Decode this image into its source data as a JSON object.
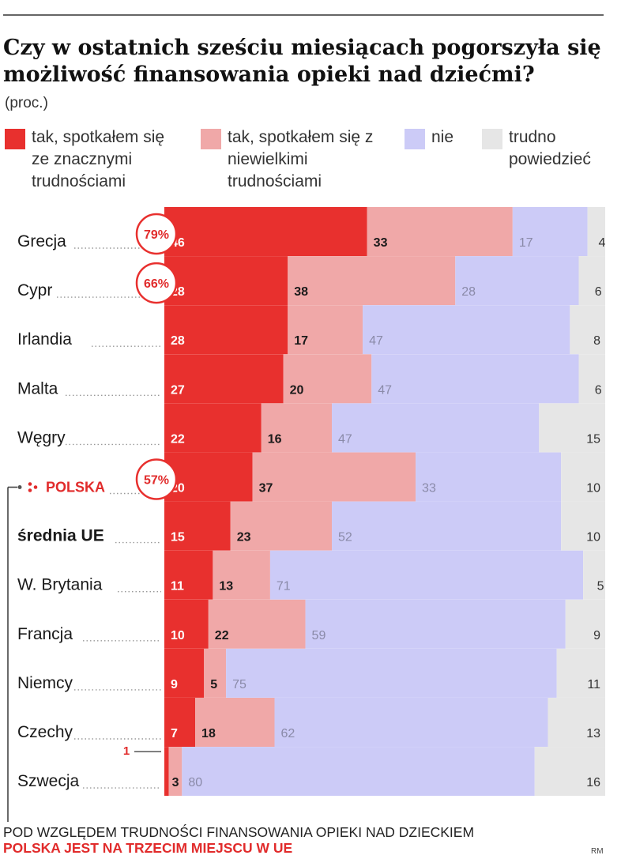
{
  "title": "Czy w ostatnich sześciu miesiącach pogorszyła się możliwość finansowania opieki nad dziećmi?",
  "unit": "(proc.)",
  "legend": [
    {
      "label": "tak, spotkałem się ze znacznymi trudnościami",
      "color": "#e8302e"
    },
    {
      "label": "tak, spotkałem się z niewielkimi trudnościami",
      "color": "#f0a8a8"
    },
    {
      "label": "nie",
      "color": "#cccbf7"
    },
    {
      "label": "trudno powiedzieć",
      "color": "#e6e6e6"
    }
  ],
  "chart_data": {
    "type": "bar",
    "orientation": "horizontal",
    "stacked": true,
    "title": "Czy w ostatnich sześciu miesiącach pogorszyła się możliwość finansowania opieki nad dziećmi?",
    "unit": "proc.",
    "categories": [
      "Grecja",
      "Cypr",
      "Irlandia",
      "Malta",
      "Węgry",
      "POLSKA",
      "średnia UE",
      "W. Brytania",
      "Francja",
      "Niemcy",
      "Czechy",
      "Szwecja"
    ],
    "series": [
      {
        "name": "tak, spotkałem się ze znacznymi trudnościami",
        "color": "#e8302e",
        "values": [
          46,
          28,
          28,
          27,
          22,
          20,
          15,
          11,
          10,
          9,
          7,
          1
        ]
      },
      {
        "name": "tak, spotkałem się z niewielkimi trudnościami",
        "color": "#f0a8a8",
        "values": [
          33,
          38,
          17,
          20,
          16,
          37,
          23,
          13,
          22,
          5,
          18,
          3
        ]
      },
      {
        "name": "nie",
        "color": "#cccbf7",
        "values": [
          17,
          28,
          47,
          47,
          47,
          33,
          52,
          71,
          59,
          75,
          62,
          80
        ]
      },
      {
        "name": "trudno powiedzieć",
        "color": "#e6e6e6",
        "values": [
          4,
          6,
          8,
          6,
          15,
          10,
          10,
          5,
          9,
          11,
          13,
          16
        ]
      }
    ],
    "annotations": [
      {
        "category": "Grecja",
        "text": "79%"
      },
      {
        "category": "Cypr",
        "text": "66%"
      },
      {
        "category": "POLSKA",
        "text": "57%"
      }
    ],
    "xlim": [
      0,
      100
    ]
  },
  "footer": {
    "line1": "POD WZGLĘDEM TRUDNOŚCI FINANSOWANIA OPIEKI NAD DZIECKIEM",
    "line2": "POLSKA JEST NA TRZECIM MIEJSCU W UE"
  },
  "credit": "RM"
}
